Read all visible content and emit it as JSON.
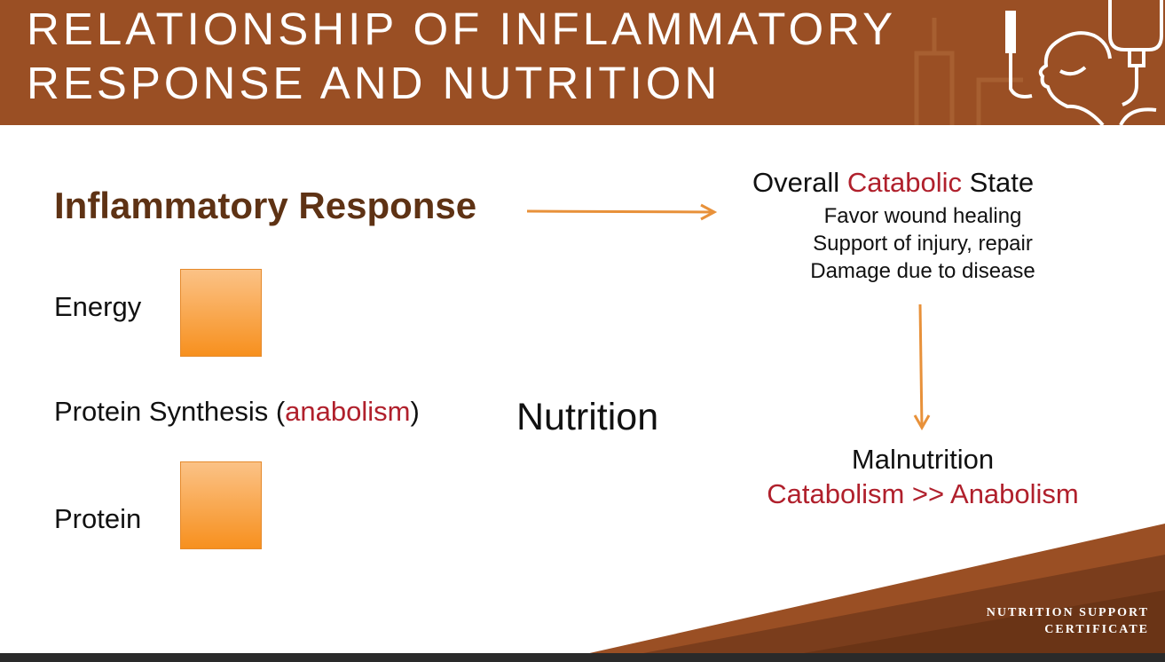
{
  "header": {
    "title_line1": "RELATIONSHIP OF INFLAMMATORY",
    "title_line2": "RESPONSE AND NUTRITION"
  },
  "left": {
    "inflammatory_response": "Inflammatory Response",
    "energy": "Energy",
    "protein_synthesis_prefix": "Protein Synthesis (",
    "anabolism": "anabolism",
    "protein_synthesis_suffix": ")",
    "protein": "Protein"
  },
  "center": {
    "nutrition": "Nutrition"
  },
  "right": {
    "overall": "Overall ",
    "catabolic": "Catabolic",
    "state": " State",
    "bullets": [
      "Favor wound healing",
      "Support of injury, repair",
      "Damage due to disease"
    ],
    "malnutrition": "Malnutrition",
    "catabolism_vs_anabolism": "Catabolism >> Anabolism"
  },
  "footer": {
    "line1": "NUTRITION SUPPORT",
    "line2": "CERTIFICATE"
  },
  "colors": {
    "header_bg": "#9a4f24",
    "heading_brown": "#5e3214",
    "accent_red": "#b0202c",
    "arrow_orange": "#e8913a",
    "box_orange": "#f7901e"
  }
}
